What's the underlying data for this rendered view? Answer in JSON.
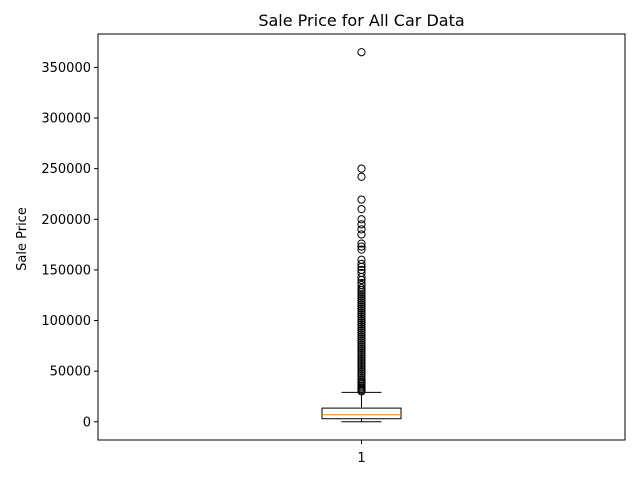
{
  "chart_data": {
    "type": "box",
    "title": "Sale Price for All Car Data",
    "xlabel": "",
    "ylabel": "Sale Price",
    "categories": [
      "1"
    ],
    "ylim": [
      -18000,
      383000
    ],
    "yticks": [
      0,
      50000,
      100000,
      150000,
      200000,
      250000,
      300000,
      350000
    ],
    "ytick_labels": [
      "0",
      "50000",
      "100000",
      "150000",
      "200000",
      "250000",
      "300000",
      "350000"
    ],
    "grid": false,
    "box": {
      "whisker_low": 0,
      "q1": 3000,
      "median": 7000,
      "q3": 13500,
      "whisker_high": 29000
    },
    "outliers": [
      365000,
      250000,
      242000,
      219500,
      210000,
      200000,
      195000,
      190000,
      185000,
      176000,
      173000,
      170000,
      160000,
      156000,
      153000,
      150000,
      147000,
      143000,
      140000,
      137000,
      135000,
      132000,
      130000,
      128000,
      126000,
      124000,
      122000,
      120000,
      118000,
      116000,
      114000,
      112000,
      110000,
      108000,
      106000,
      104000,
      102000,
      100000,
      98000,
      96000,
      94000,
      92000,
      90000,
      88000,
      86000,
      84000,
      82000,
      80000,
      78000,
      76000,
      74000,
      72000,
      70000,
      68000,
      66000,
      64000,
      62000,
      60000,
      58000,
      56000,
      54000,
      52000,
      50000,
      48000,
      46000,
      44000,
      42000,
      40000,
      38500,
      37000,
      35500,
      34000,
      32500,
      31000,
      30000
    ],
    "colors": {
      "box": "#000000",
      "median": "#ff7f0e",
      "outlier": "#000000"
    }
  }
}
